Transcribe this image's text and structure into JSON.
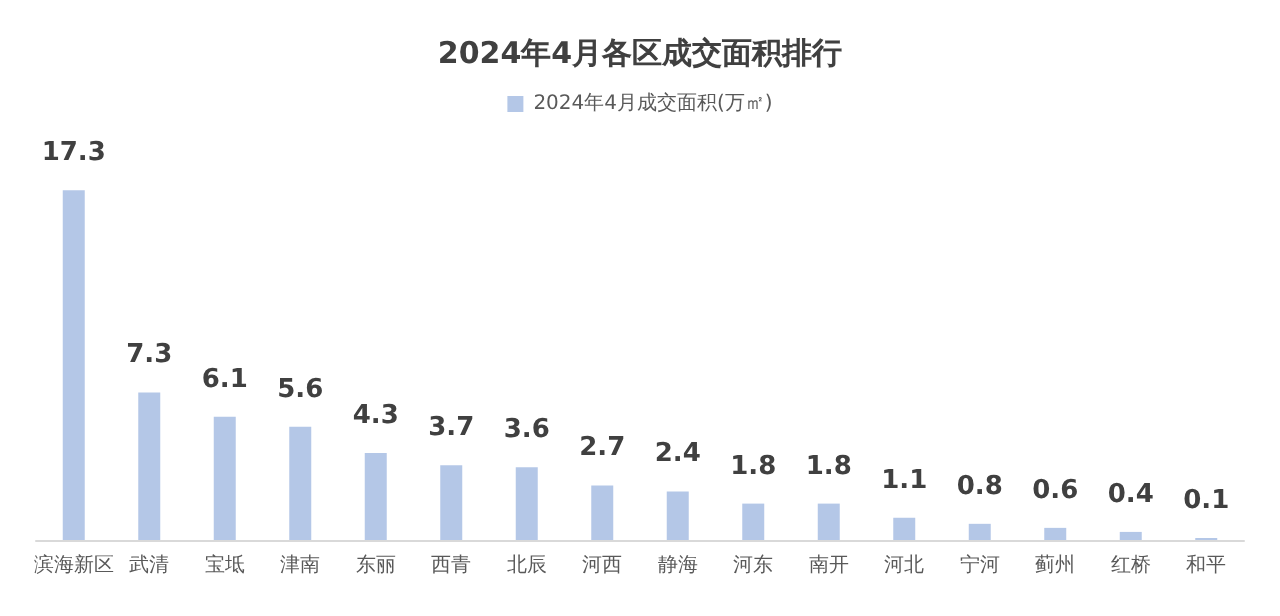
{
  "chart_data": {
    "type": "bar",
    "title": "2024年4月各区成交面积排行",
    "categories": [
      "滨海新区",
      "武清",
      "宝坻",
      "津南",
      "东丽",
      "西青",
      "北辰",
      "河西",
      "静海",
      "河东",
      "南开",
      "河北",
      "宁河",
      "蓟州",
      "红桥",
      "和平"
    ],
    "series": [
      {
        "name": "2024年4月成交面积(万㎡)",
        "color": "#b4c7e7",
        "values": [
          17.3,
          7.3,
          6.1,
          5.6,
          4.3,
          3.7,
          3.6,
          2.7,
          2.4,
          1.8,
          1.8,
          1.1,
          0.8,
          0.6,
          0.4,
          0.1
        ]
      }
    ],
    "data_labels": true,
    "legend": "top"
  }
}
